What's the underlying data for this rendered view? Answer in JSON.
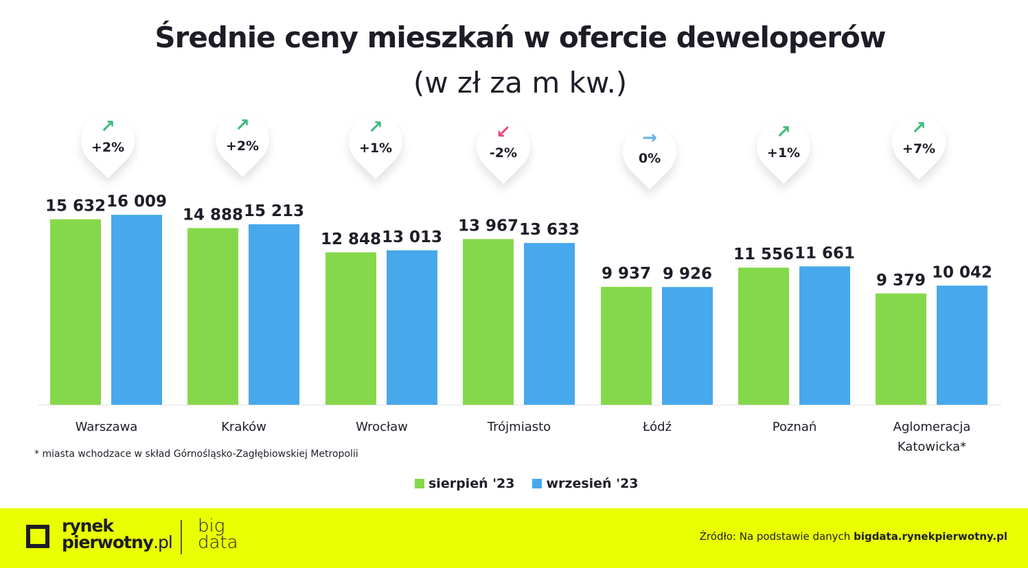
{
  "chart_data": {
    "type": "bar",
    "title": "Średnie ceny mieszkań w ofercie deweloperów",
    "subtitle": "(w zł za m kw.)",
    "categories": [
      "Warszawa",
      "Kraków",
      "Wrocław",
      "Trójmiasto",
      "Łódź",
      "Poznań",
      "Aglomeracja Katowicka*"
    ],
    "series": [
      {
        "name": "sierpień '23",
        "color": "#86d84b",
        "values": [
          15632,
          14888,
          12848,
          13967,
          9937,
          11556,
          9379
        ],
        "labels": [
          "15 632",
          "14 888",
          "12 848",
          "13 967",
          "9 937",
          "11 556",
          "9 379"
        ]
      },
      {
        "name": "wrzesień '23",
        "color": "#47a8ec",
        "values": [
          16009,
          15213,
          13013,
          13633,
          9926,
          11661,
          10042
        ],
        "labels": [
          "16 009",
          "15 213",
          "13 013",
          "13 633",
          "9 926",
          "11 661",
          "10 042"
        ]
      }
    ],
    "changes": [
      {
        "label": "+2%",
        "direction": "up",
        "icon": "arrow-up-right-icon",
        "color": "#3dbb7a"
      },
      {
        "label": "+2%",
        "direction": "up",
        "icon": "arrow-up-right-icon",
        "color": "#3dbb7a"
      },
      {
        "label": "+1%",
        "direction": "up",
        "icon": "arrow-up-right-icon",
        "color": "#3dbb7a"
      },
      {
        "label": "-2%",
        "direction": "down",
        "icon": "arrow-down-left-icon",
        "color": "#f0457d"
      },
      {
        "label": "0%",
        "direction": "flat",
        "icon": "arrow-right-icon",
        "color": "#6aafe0"
      },
      {
        "label": "+1%",
        "direction": "up",
        "icon": "arrow-up-right-icon",
        "color": "#3dbb7a"
      },
      {
        "label": "+7%",
        "direction": "up",
        "icon": "arrow-up-right-icon",
        "color": "#3dbb7a"
      }
    ],
    "ylim": [
      0,
      17000
    ],
    "grid": false,
    "legend": "bottom",
    "xlabel": "",
    "ylabel": ""
  },
  "footnote": "* miasta wchodzace w skład Górnośląsko-Zagłębiowskiej Metropolii",
  "footer": {
    "logo_line1": "rynek",
    "logo_line2": "pierwotny",
    "logo_suffix": ".pl",
    "big": "big",
    "data": "data",
    "source_prefix": "Źródło: Na podstawie danych ",
    "source_bold": "bigdata.rynekpierwotny.pl",
    "background": "#eaff00"
  }
}
